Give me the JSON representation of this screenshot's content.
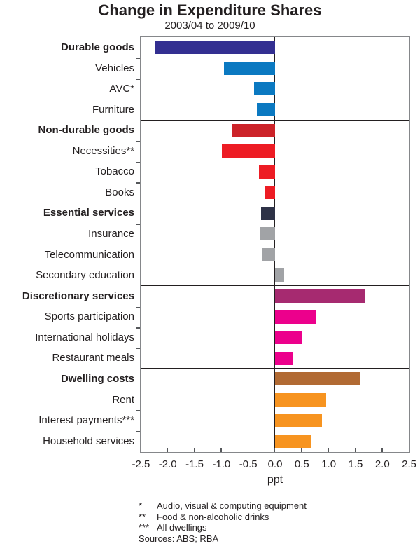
{
  "title": "Change in Expenditure Shares",
  "subtitle": "2003/04 to 2009/10",
  "chart_data": {
    "type": "bar",
    "orientation": "horizontal",
    "title": "Change in Expenditure Shares",
    "subtitle": "2003/04 to 2009/10",
    "xlabel": "ppt",
    "xlim": [
      -2.5,
      2.5
    ],
    "xtick_labels": [
      "-2.5",
      "-2.0",
      "-1.5",
      "-1.0",
      "-0.5",
      "0.0",
      "0.5",
      "1.0",
      "1.5",
      "2.0",
      "2.5"
    ],
    "grid": false,
    "panels": [
      {
        "group": "Durable goods",
        "rows": [
          {
            "label": "Durable goods",
            "value": -2.23,
            "bold": true,
            "color": "#332f91"
          },
          {
            "label": "Vehicles",
            "value": -0.95,
            "bold": false,
            "color": "#0b79c1"
          },
          {
            "label": "AVC*",
            "value": -0.38,
            "bold": false,
            "color": "#0b79c1"
          },
          {
            "label": "Furniture",
            "value": -0.34,
            "bold": false,
            "color": "#0b79c1"
          }
        ]
      },
      {
        "group": "Non-durable goods",
        "rows": [
          {
            "label": "Non-durable goods",
            "value": -0.79,
            "bold": true,
            "color": "#cc2329"
          },
          {
            "label": "Necessities**",
            "value": -0.98,
            "bold": false,
            "color": "#ed1c24"
          },
          {
            "label": "Tobacco",
            "value": -0.29,
            "bold": false,
            "color": "#ed1c24"
          },
          {
            "label": "Books",
            "value": -0.18,
            "bold": false,
            "color": "#ed1c24"
          }
        ]
      },
      {
        "group": "Essential services",
        "rows": [
          {
            "label": "Essential services",
            "value": -0.26,
            "bold": true,
            "color": "#2e3247"
          },
          {
            "label": "Insurance",
            "value": -0.28,
            "bold": false,
            "color": "#a1a3a6"
          },
          {
            "label": "Telecommunication",
            "value": -0.24,
            "bold": false,
            "color": "#a1a3a6"
          },
          {
            "label": "Secondary education",
            "value": 0.18,
            "bold": false,
            "color": "#a1a3a6"
          }
        ]
      },
      {
        "group": "Discretionary services",
        "rows": [
          {
            "label": "Discretionary services",
            "value": 1.67,
            "bold": true,
            "color": "#a62a70"
          },
          {
            "label": "Sports participation",
            "value": 0.77,
            "bold": false,
            "color": "#ec008c"
          },
          {
            "label": "International holidays",
            "value": 0.5,
            "bold": false,
            "color": "#ec008c"
          },
          {
            "label": "Restaurant meals",
            "value": 0.33,
            "bold": false,
            "color": "#ec008c"
          }
        ]
      },
      {
        "group": "Dwelling costs",
        "rows": [
          {
            "label": "Dwelling costs",
            "value": 1.6,
            "bold": true,
            "color": "#b16a33"
          },
          {
            "label": "Rent",
            "value": 0.96,
            "bold": false,
            "color": "#f79420"
          },
          {
            "label": "Interest payments***",
            "value": 0.88,
            "bold": false,
            "color": "#f79420"
          },
          {
            "label": "Household services",
            "value": 0.69,
            "bold": false,
            "color": "#f79420"
          }
        ]
      }
    ]
  },
  "footnotes": [
    {
      "marker": "*",
      "text": "Audio, visual & computing equipment"
    },
    {
      "marker": "**",
      "text": "Food & non-alcoholic drinks"
    },
    {
      "marker": "***",
      "text": "All dwellings"
    }
  ],
  "sources": "Sources: ABS; RBA",
  "colors": {
    "text": "#231f20",
    "plot_border": "#85878a",
    "panel_divider": "#231f20",
    "zero_line": "#231f20"
  }
}
